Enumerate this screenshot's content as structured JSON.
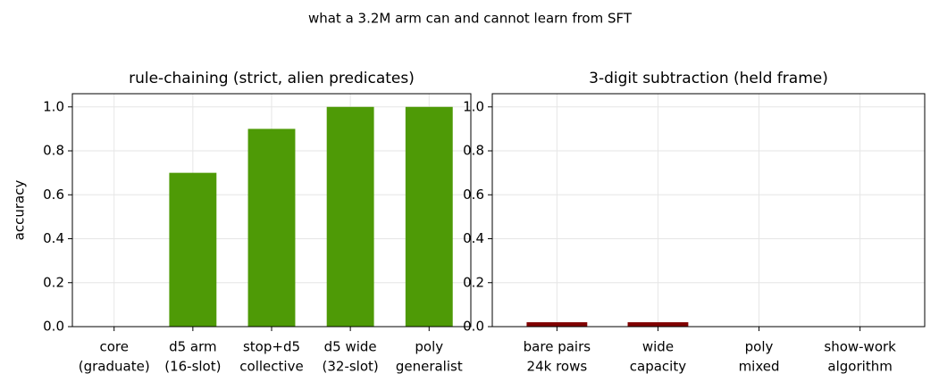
{
  "chart_data": [
    {
      "type": "bar",
      "suptitle": "what a 3.2M arm can and cannot learn from SFT",
      "title": "rule-chaining (strict, alien predicates)",
      "ylabel": "accuracy",
      "categories": [
        [
          "core",
          "(graduate)"
        ],
        [
          "d5 arm",
          "(16-slot)"
        ],
        [
          "stop+d5",
          "collective"
        ],
        [
          "d5 wide",
          "(32-slot)"
        ],
        [
          "poly",
          "generalist"
        ]
      ],
      "values": [
        0,
        0.7,
        0.9,
        1.0,
        1.0
      ],
      "color": "#4e9a06",
      "ylim": [
        0,
        1.06
      ],
      "yticks": [
        {
          "value": 0,
          "label": "0.0"
        },
        {
          "value": 0.2,
          "label": "0.2"
        },
        {
          "value": 0.4,
          "label": "0.4"
        },
        {
          "value": 0.6,
          "label": "0.6"
        },
        {
          "value": 0.8,
          "label": "0.8"
        },
        {
          "value": 1,
          "label": "1.0"
        }
      ],
      "grid": true
    },
    {
      "type": "bar",
      "title": "3-digit subtraction (held frame)",
      "categories": [
        [
          "bare pairs",
          "24k rows"
        ],
        [
          "wide",
          "capacity"
        ],
        [
          "poly",
          "mixed"
        ],
        [
          "show-work",
          "algorithm"
        ]
      ],
      "values": [
        0.02,
        0.02,
        0,
        0
      ],
      "color": "#800000",
      "ylim": [
        0,
        1.06
      ],
      "yticks": [
        {
          "value": 0,
          "label": "0.0"
        },
        {
          "value": 0.2,
          "label": "0.2"
        },
        {
          "value": 0.4,
          "label": "0.4"
        },
        {
          "value": 0.6,
          "label": "0.6"
        },
        {
          "value": 0.8,
          "label": "0.8"
        },
        {
          "value": 1,
          "label": "1.0"
        }
      ],
      "grid": true
    }
  ]
}
